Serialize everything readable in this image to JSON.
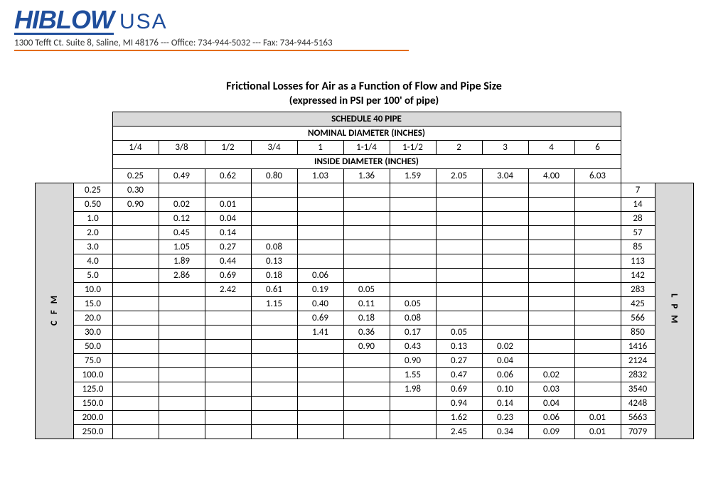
{
  "header": {
    "brand_left": "HIBLOW",
    "brand_right": "USA",
    "contact": "1300 Tefft Ct. Suite 8, Saline, MI 48176 --- Office: 734-944-5032 --- Fax: 734-944-5163"
  },
  "title": {
    "main": "Frictional Losses for Air as a Function of Flow and Pipe Size",
    "sub": "(expressed in PSI per 100' of pipe)"
  },
  "table": {
    "pipe_spec": "SCHEDULE 40 PIPE",
    "nominal_header": "NOMINAL DIAMETER (INCHES)",
    "inside_header": "INSIDE DIAMETER (INCHES)",
    "left_axis": "C F M",
    "right_axis": "L P M",
    "nominal_diameters": [
      "1/4",
      "3/8",
      "1/2",
      "3/4",
      "1",
      "1-1/4",
      "1-1/2",
      "2",
      "3",
      "4",
      "6"
    ],
    "inside_diameters": [
      "0.25",
      "0.49",
      "0.62",
      "0.80",
      "1.03",
      "1.36",
      "1.59",
      "2.05",
      "3.04",
      "4.00",
      "6.03"
    ],
    "rows": [
      {
        "cfm": "0.25",
        "lpm": "7",
        "vals": [
          "0.30",
          "",
          "",
          "",
          "",
          "",
          "",
          "",
          "",
          "",
          ""
        ]
      },
      {
        "cfm": "0.50",
        "lpm": "14",
        "vals": [
          "0.90",
          "0.02",
          "0.01",
          "",
          "",
          "",
          "",
          "",
          "",
          "",
          ""
        ]
      },
      {
        "cfm": "1.0",
        "lpm": "28",
        "vals": [
          "",
          "0.12",
          "0.04",
          "",
          "",
          "",
          "",
          "",
          "",
          "",
          ""
        ]
      },
      {
        "cfm": "2.0",
        "lpm": "57",
        "vals": [
          "",
          "0.45",
          "0.14",
          "",
          "",
          "",
          "",
          "",
          "",
          "",
          ""
        ]
      },
      {
        "cfm": "3.0",
        "lpm": "85",
        "vals": [
          "",
          "1.05",
          "0.27",
          "0.08",
          "",
          "",
          "",
          "",
          "",
          "",
          ""
        ]
      },
      {
        "cfm": "4.0",
        "lpm": "113",
        "vals": [
          "",
          "1.89",
          "0.44",
          "0.13",
          "",
          "",
          "",
          "",
          "",
          "",
          ""
        ]
      },
      {
        "cfm": "5.0",
        "lpm": "142",
        "vals": [
          "",
          "2.86",
          "0.69",
          "0.18",
          "0.06",
          "",
          "",
          "",
          "",
          "",
          ""
        ]
      },
      {
        "cfm": "10.0",
        "lpm": "283",
        "vals": [
          "",
          "",
          "2.42",
          "0.61",
          "0.19",
          "0.05",
          "",
          "",
          "",
          "",
          ""
        ]
      },
      {
        "cfm": "15.0",
        "lpm": "425",
        "vals": [
          "",
          "",
          "",
          "1.15",
          "0.40",
          "0.11",
          "0.05",
          "",
          "",
          "",
          ""
        ]
      },
      {
        "cfm": "20.0",
        "lpm": "566",
        "vals": [
          "",
          "",
          "",
          "",
          "0.69",
          "0.18",
          "0.08",
          "",
          "",
          "",
          ""
        ]
      },
      {
        "cfm": "30.0",
        "lpm": "850",
        "vals": [
          "",
          "",
          "",
          "",
          "1.41",
          "0.36",
          "0.17",
          "0.05",
          "",
          "",
          ""
        ]
      },
      {
        "cfm": "50.0",
        "lpm": "1416",
        "vals": [
          "",
          "",
          "",
          "",
          "",
          "0.90",
          "0.43",
          "0.13",
          "0.02",
          "",
          ""
        ]
      },
      {
        "cfm": "75.0",
        "lpm": "2124",
        "vals": [
          "",
          "",
          "",
          "",
          "",
          "",
          "0.90",
          "0.27",
          "0.04",
          "",
          ""
        ]
      },
      {
        "cfm": "100.0",
        "lpm": "2832",
        "vals": [
          "",
          "",
          "",
          "",
          "",
          "",
          "1.55",
          "0.47",
          "0.06",
          "0.02",
          ""
        ]
      },
      {
        "cfm": "125.0",
        "lpm": "3540",
        "vals": [
          "",
          "",
          "",
          "",
          "",
          "",
          "1.98",
          "0.69",
          "0.10",
          "0.03",
          ""
        ]
      },
      {
        "cfm": "150.0",
        "lpm": "4248",
        "vals": [
          "",
          "",
          "",
          "",
          "",
          "",
          "",
          "0.94",
          "0.14",
          "0.04",
          ""
        ]
      },
      {
        "cfm": "200.0",
        "lpm": "5663",
        "vals": [
          "",
          "",
          "",
          "",
          "",
          "",
          "",
          "1.62",
          "0.23",
          "0.06",
          "0.01"
        ]
      },
      {
        "cfm": "250.0",
        "lpm": "7079",
        "vals": [
          "",
          "",
          "",
          "",
          "",
          "",
          "",
          "2.45",
          "0.34",
          "0.09",
          "0.01"
        ]
      }
    ]
  },
  "style": {
    "brand_color": "#1f4e9c",
    "rule_color": "#e36c0a",
    "header_bg": "#d9d9d9"
  }
}
